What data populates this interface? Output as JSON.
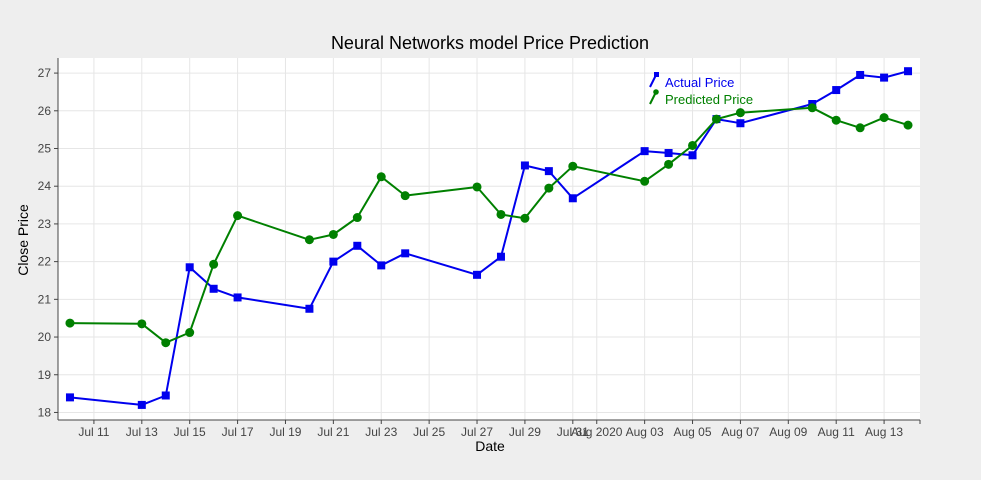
{
  "chart_data": {
    "type": "line",
    "title": "Neural Networks model Price Prediction",
    "xlabel": "Date",
    "ylabel": "Close Price",
    "xlim": [
      "2020-07-09T12:00",
      "2020-08-14T12:00"
    ],
    "ylim": [
      17.8,
      27.4
    ],
    "grid": true,
    "legend_position": "top-right",
    "x_ticks": [
      {
        "date": "2020-07-11",
        "label": "Jul 11"
      },
      {
        "date": "2020-07-13",
        "label": "Jul 13"
      },
      {
        "date": "2020-07-15",
        "label": "Jul 15"
      },
      {
        "date": "2020-07-17",
        "label": "Jul 17"
      },
      {
        "date": "2020-07-19",
        "label": "Jul 19"
      },
      {
        "date": "2020-07-21",
        "label": "Jul 21"
      },
      {
        "date": "2020-07-23",
        "label": "Jul 23"
      },
      {
        "date": "2020-07-25",
        "label": "Jul 25"
      },
      {
        "date": "2020-07-27",
        "label": "Jul 27"
      },
      {
        "date": "2020-07-29",
        "label": "Jul 29"
      },
      {
        "date": "2020-07-31",
        "label": "Jul 31"
      },
      {
        "date": "2020-08-01",
        "label": "Aug 2020"
      },
      {
        "date": "2020-08-03",
        "label": "Aug 03"
      },
      {
        "date": "2020-08-05",
        "label": "Aug 05"
      },
      {
        "date": "2020-08-07",
        "label": "Aug 07"
      },
      {
        "date": "2020-08-09",
        "label": "Aug 09"
      },
      {
        "date": "2020-08-11",
        "label": "Aug 11"
      },
      {
        "date": "2020-08-13",
        "label": "Aug 13"
      }
    ],
    "y_ticks": [
      18,
      19,
      20,
      21,
      22,
      23,
      24,
      25,
      26,
      27
    ],
    "series": [
      {
        "name": "Actual Price",
        "color": "#0000ee",
        "marker": "square",
        "x": [
          "2020-07-10",
          "2020-07-13",
          "2020-07-14",
          "2020-07-15",
          "2020-07-16",
          "2020-07-17",
          "2020-07-20",
          "2020-07-21",
          "2020-07-22",
          "2020-07-23",
          "2020-07-24",
          "2020-07-27",
          "2020-07-28",
          "2020-07-29",
          "2020-07-30",
          "2020-07-31",
          "2020-08-03",
          "2020-08-04",
          "2020-08-05",
          "2020-08-06",
          "2020-08-07",
          "2020-08-10",
          "2020-08-11",
          "2020-08-12",
          "2020-08-13",
          "2020-08-14"
        ],
        "y": [
          18.4,
          18.2,
          18.45,
          21.85,
          21.28,
          21.05,
          20.75,
          22.0,
          22.42,
          21.9,
          22.22,
          21.65,
          22.13,
          24.55,
          24.4,
          23.68,
          24.93,
          24.88,
          24.82,
          25.78,
          25.67,
          26.18,
          26.55,
          26.95,
          26.88,
          27.05
        ]
      },
      {
        "name": "Predicted Price",
        "color": "#008000",
        "marker": "circle",
        "x": [
          "2020-07-10",
          "2020-07-13",
          "2020-07-14",
          "2020-07-15",
          "2020-07-16",
          "2020-07-17",
          "2020-07-20",
          "2020-07-21",
          "2020-07-22",
          "2020-07-23",
          "2020-07-24",
          "2020-07-27",
          "2020-07-28",
          "2020-07-29",
          "2020-07-30",
          "2020-07-31",
          "2020-08-03",
          "2020-08-04",
          "2020-08-05",
          "2020-08-06",
          "2020-08-07",
          "2020-08-10",
          "2020-08-11",
          "2020-08-12",
          "2020-08-13",
          "2020-08-14"
        ],
        "y": [
          20.37,
          20.35,
          19.85,
          20.12,
          21.93,
          23.22,
          22.58,
          22.72,
          23.17,
          24.25,
          23.75,
          23.98,
          23.25,
          23.15,
          23.95,
          24.53,
          24.13,
          24.58,
          25.08,
          25.78,
          25.95,
          26.08,
          25.75,
          25.55,
          25.82,
          25.62
        ]
      }
    ]
  }
}
